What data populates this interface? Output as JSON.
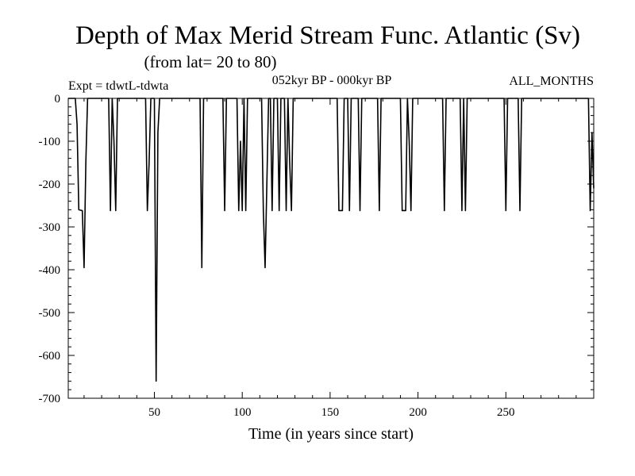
{
  "chart_data": {
    "type": "line",
    "title": "Depth of Max Merid Stream Func. Atlantic (Sv)",
    "subtitle": "(from lat= 20 to 80)",
    "info_left": "Expt = tdwtL-tdwta",
    "info_center": "052kyr BP - 000kyr BP",
    "info_right": "ALL_MONTHS",
    "xlabel": "Time (in years since start)",
    "ylabel": "",
    "xlim": [
      1,
      300
    ],
    "ylim": [
      -700,
      0
    ],
    "xticks": [
      50,
      100,
      150,
      200,
      250
    ],
    "yticks": [
      0,
      -100,
      -200,
      -300,
      -400,
      -500,
      -600,
      -700
    ],
    "grid": false,
    "line_color": "#000000",
    "series": [
      {
        "values": [
          [
            1,
            0
          ],
          [
            5,
            0
          ],
          [
            6,
            -60
          ],
          [
            7,
            -260
          ],
          [
            9,
            -262
          ],
          [
            10,
            -395
          ],
          [
            11,
            -150
          ],
          [
            12,
            0
          ],
          [
            24,
            0
          ],
          [
            25,
            -262
          ],
          [
            26,
            0
          ],
          [
            27,
            -100
          ],
          [
            28,
            -262
          ],
          [
            29,
            0
          ],
          [
            45,
            0
          ],
          [
            46,
            -262
          ],
          [
            47,
            -150
          ],
          [
            48,
            0
          ],
          [
            50,
            0
          ],
          [
            51,
            -660
          ],
          [
            52,
            -80
          ],
          [
            53,
            0
          ],
          [
            76,
            0
          ],
          [
            77,
            -395
          ],
          [
            78,
            0
          ],
          [
            89,
            0
          ],
          [
            90,
            -262
          ],
          [
            91,
            0
          ],
          [
            97,
            0
          ],
          [
            98,
            -262
          ],
          [
            99,
            -100
          ],
          [
            100,
            -262
          ],
          [
            101,
            0
          ],
          [
            102,
            -262
          ],
          [
            103,
            0
          ],
          [
            111,
            0
          ],
          [
            112,
            -262
          ],
          [
            113,
            -395
          ],
          [
            114,
            -200
          ],
          [
            115,
            0
          ],
          [
            116,
            0
          ],
          [
            117,
            -262
          ],
          [
            118,
            0
          ],
          [
            120,
            0
          ],
          [
            121,
            -262
          ],
          [
            122,
            0
          ],
          [
            124,
            0
          ],
          [
            125,
            -262
          ],
          [
            126,
            0
          ],
          [
            127,
            -150
          ],
          [
            128,
            -262
          ],
          [
            129,
            0
          ],
          [
            154,
            0
          ],
          [
            155,
            -262
          ],
          [
            157,
            -262
          ],
          [
            158,
            0
          ],
          [
            160,
            0
          ],
          [
            161,
            -262
          ],
          [
            162,
            0
          ],
          [
            166,
            0
          ],
          [
            167,
            -262
          ],
          [
            168,
            0
          ],
          [
            177,
            0
          ],
          [
            178,
            -262
          ],
          [
            179,
            0
          ],
          [
            190,
            0
          ],
          [
            191,
            -262
          ],
          [
            193,
            -262
          ],
          [
            194,
            0
          ],
          [
            195,
            -100
          ],
          [
            196,
            -262
          ],
          [
            197,
            0
          ],
          [
            214,
            0
          ],
          [
            215,
            -262
          ],
          [
            216,
            0
          ],
          [
            224,
            0
          ],
          [
            225,
            -262
          ],
          [
            226,
            0
          ],
          [
            227,
            -262
          ],
          [
            228,
            0
          ],
          [
            249,
            0
          ],
          [
            250,
            -262
          ],
          [
            251,
            0
          ],
          [
            257,
            0
          ],
          [
            258,
            -262
          ],
          [
            259,
            0
          ],
          [
            297,
            0
          ],
          [
            298,
            -262
          ],
          [
            299,
            -80
          ],
          [
            300,
            -210
          ]
        ]
      }
    ]
  }
}
